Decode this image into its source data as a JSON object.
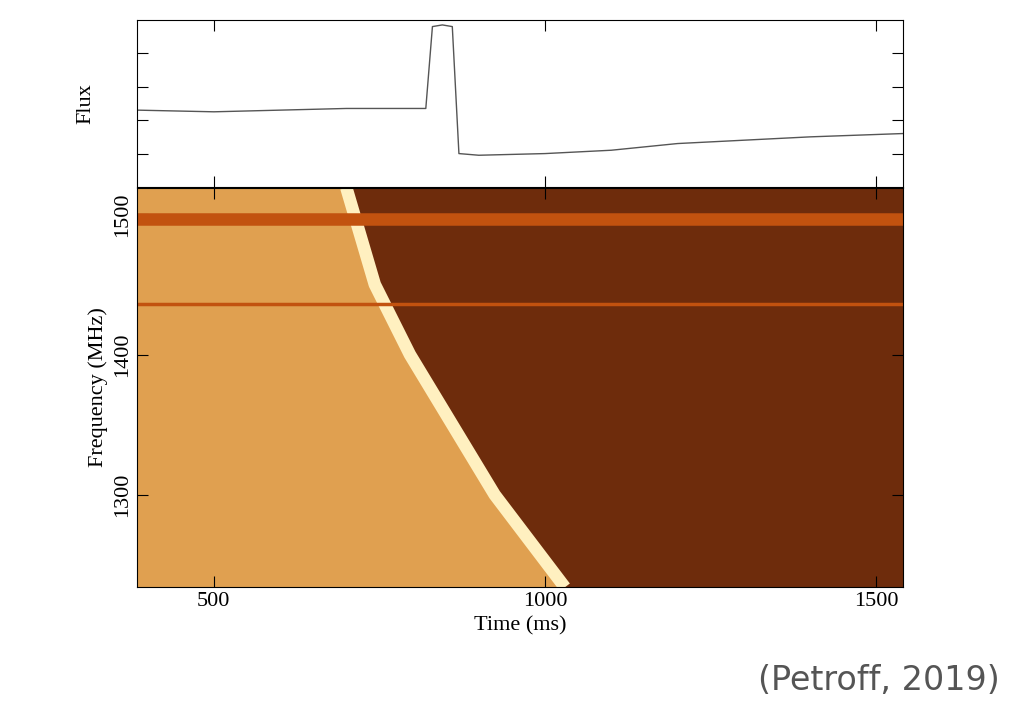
{
  "chart_data": [
    {
      "type": "line",
      "y_label": "Flux",
      "x": [
        384,
        500,
        600,
        700,
        820,
        830,
        845,
        860,
        870,
        900,
        1000,
        1100,
        1200,
        1300,
        1400,
        1541
      ],
      "values": [
        4.6,
        4.5,
        4.6,
        4.7,
        4.7,
        9.6,
        9.7,
        9.6,
        2.0,
        1.9,
        2.0,
        2.2,
        2.6,
        2.8,
        3.0,
        3.2
      ],
      "color": "#555555",
      "xlim": [
        384,
        1541
      ],
      "ylim": [
        0,
        10
      ],
      "xticks": [
        500,
        1000,
        1500
      ],
      "yticks": [
        2,
        4,
        6,
        8
      ],
      "tick_labels": false
    },
    {
      "type": "waterfall",
      "x_label": "Time (ms)",
      "y_label": "Frequency (MHz)",
      "sweep_time": [
        700,
        743,
        796,
        860,
        924,
        1030
      ],
      "sweep_frequency": [
        1519,
        1450,
        1400,
        1350,
        1300,
        1234
      ],
      "rfi_frequency": [
        1497,
        1436
      ],
      "color": "#fff0c0",
      "xlim": [
        384,
        1541
      ],
      "ylim": [
        1234,
        1519
      ],
      "xticks": [
        500,
        1000,
        1500
      ],
      "yticks": [
        1300,
        1400,
        1500
      ],
      "annotation": "(Petroff, 2019)"
    }
  ]
}
